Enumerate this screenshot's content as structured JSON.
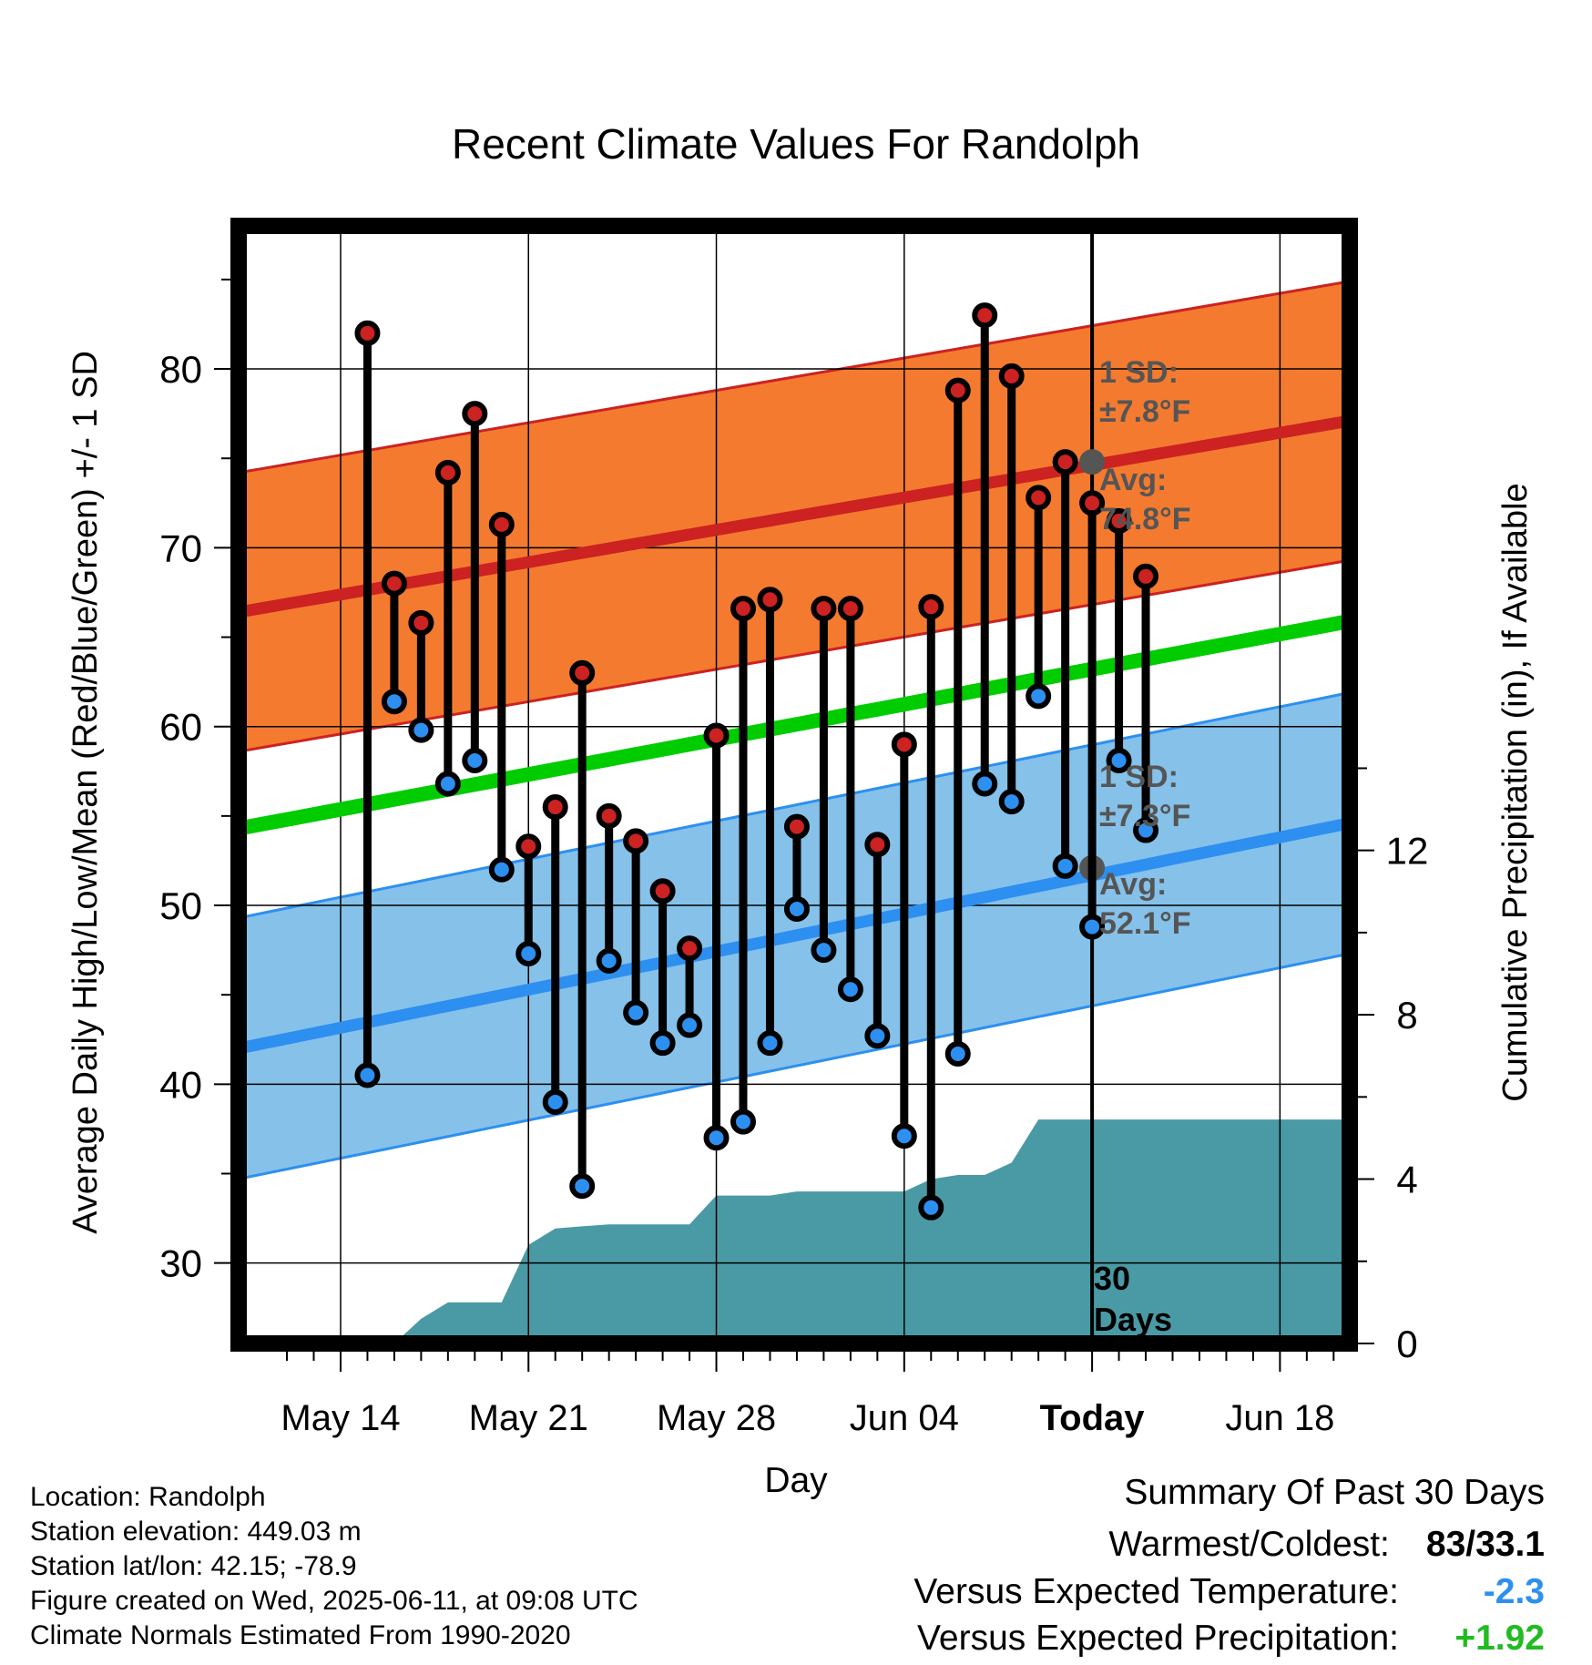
{
  "chart_data": {
    "type": "line",
    "title": "Recent Climate Values For Randolph",
    "xlabel": "Day",
    "ylabel": "Average Daily High/Low/Mean (Red/Blue/Green) +/- 1 SD",
    "y2label": "Cumulative Precipitation (in), If Available",
    "ylim": [
      25.5,
      88
    ],
    "y2lim": [
      0,
      27.2
    ],
    "yticks": [
      "30",
      "40",
      "50",
      "60",
      "70",
      "80"
    ],
    "y2ticks": [
      "0",
      "4",
      "8",
      "12"
    ],
    "xlim": [
      -4.8,
      36.6
    ],
    "x_ticks": [
      {
        "x": -1,
        "label": "May 14"
      },
      {
        "x": 6,
        "label": "May 21"
      },
      {
        "x": 13,
        "label": "May 28"
      },
      {
        "x": 20,
        "label": "Jun 04"
      },
      {
        "x": 27,
        "label": "Today"
      },
      {
        "x": 34,
        "label": "Jun 18"
      }
    ],
    "highs": [
      82.0,
      68.0,
      65.8,
      74.2,
      77.5,
      71.3,
      53.3,
      55.5,
      63.0,
      55.0,
      53.6,
      50.8,
      47.6,
      59.5,
      66.6,
      67.1,
      54.4,
      66.6,
      66.6,
      53.4,
      59.0,
      66.7,
      78.8,
      83.0,
      79.6,
      72.8,
      74.8,
      72.5,
      71.5,
      68.4
    ],
    "lows": [
      40.5,
      61.4,
      59.8,
      56.8,
      58.1,
      52.0,
      47.3,
      39.0,
      34.3,
      46.9,
      44.0,
      42.3,
      43.3,
      37.0,
      37.9,
      42.3,
      49.8,
      47.5,
      45.3,
      42.7,
      37.1,
      33.1,
      41.7,
      56.8,
      55.8,
      61.7,
      52.2,
      48.8,
      58.1,
      54.2
    ],
    "normal_high": {
      "start": 66.4,
      "today": 74.8,
      "end": 77.1
    },
    "normal_low": {
      "start": 42.0,
      "today": 52.1,
      "end": 54.6
    },
    "normal_mean": {
      "start": 54.3,
      "end": 65.9
    },
    "sd_high": 7.8,
    "sd_low": 7.3,
    "precip_cumulative": [
      {
        "x": 1,
        "y": 0
      },
      {
        "x": 2,
        "y": 0.6
      },
      {
        "x": 3,
        "y": 1.0
      },
      {
        "x": 4,
        "y": 1.0
      },
      {
        "x": 5,
        "y": 1.0
      },
      {
        "x": 6,
        "y": 2.4
      },
      {
        "x": 7,
        "y": 2.8
      },
      {
        "x": 8,
        "y": 2.85
      },
      {
        "x": 9,
        "y": 2.9
      },
      {
        "x": 10,
        "y": 2.9
      },
      {
        "x": 11,
        "y": 2.9
      },
      {
        "x": 12,
        "y": 2.9
      },
      {
        "x": 13,
        "y": 3.6
      },
      {
        "x": 14,
        "y": 3.6
      },
      {
        "x": 15,
        "y": 3.6
      },
      {
        "x": 16,
        "y": 3.7
      },
      {
        "x": 17,
        "y": 3.7
      },
      {
        "x": 18,
        "y": 3.7
      },
      {
        "x": 19,
        "y": 3.7
      },
      {
        "x": 20,
        "y": 3.7
      },
      {
        "x": 21,
        "y": 4.0
      },
      {
        "x": 22,
        "y": 4.1
      },
      {
        "x": 23,
        "y": 4.1
      },
      {
        "x": 24,
        "y": 4.4
      },
      {
        "x": 25,
        "y": 5.45
      },
      {
        "x": 26,
        "y": 5.45
      },
      {
        "x": 27,
        "y": 5.45
      },
      {
        "x": 36.6,
        "y": 5.45
      }
    ],
    "today_x": 27,
    "grid": true,
    "colors": {
      "high": "#cc2222",
      "high_band": "#f47a2f",
      "low": "#2d8ff0",
      "low_band": "#85c1e9",
      "mean": "#00cc00",
      "precip": "#4a9aa5",
      "annotation": "#555555"
    }
  },
  "annotations": {
    "high_sd_label": "1 SD:",
    "high_sd_value": "±7.8°F",
    "high_avg_label": "Avg:",
    "high_avg_value": "74.8°F",
    "low_sd_label": "1 SD:",
    "low_sd_value": "±7.3°F",
    "low_avg_label": "Avg:",
    "low_avg_value": "52.1°F",
    "days_number": "30",
    "days_word": "Days"
  },
  "info": {
    "location": "Location: Randolph",
    "elevation": "Station elevation: 449.03 m",
    "latlon": "Station lat/lon: 42.15; -78.9",
    "created": "Figure created on Wed, 2025-06-11, at 09:08 UTC",
    "normals": "Climate Normals Estimated From 1990-2020"
  },
  "summary": {
    "title": "Summary Of Past 30 Days",
    "warm_cold_label": "Warmest/Coldest:",
    "warm_cold_value": "83/33.1",
    "temp_label": "Versus Expected Temperature:",
    "temp_value": "-2.3",
    "temp_color": "#2d8ff0",
    "precip_label": "Versus Expected Precipitation:",
    "precip_value": "+1.92",
    "precip_color": "#22bb22"
  }
}
